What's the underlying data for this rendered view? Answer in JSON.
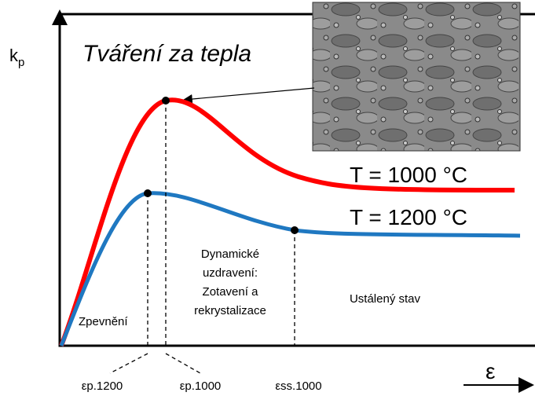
{
  "axes": {
    "y_symbol": "k",
    "y_subscript": "p",
    "x_symbol": "ε"
  },
  "title": "Tváření za tepla",
  "curves": [
    {
      "label": "T = 1000 °C"
    },
    {
      "label": "T = 1200 °C"
    }
  ],
  "regions": {
    "hardening": "Zpevnění",
    "recovery": [
      "Dynamické",
      "uzdravení:",
      "Zotavení a",
      "rekrystalizace"
    ],
    "steady": "Ustálený stav"
  },
  "strain_marks": [
    "εp.1200",
    "εp.1000",
    "εss.1000"
  ]
}
